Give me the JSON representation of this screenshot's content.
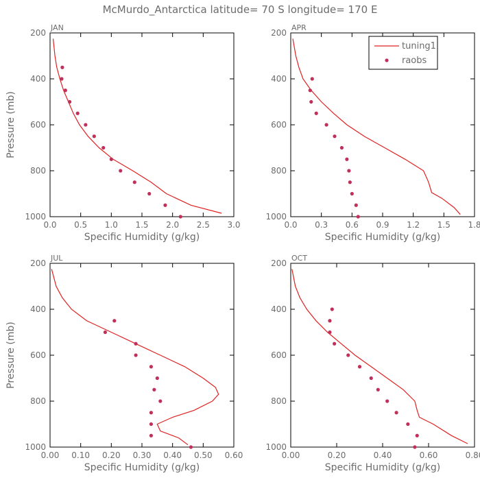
{
  "suptitle": "McMurdo_Antarctica  latitude= 70 S longitude= 170 E",
  "colors": {
    "model": "#e02020",
    "obs": "#c0305a",
    "axis": "#000000",
    "text": "#6b6b6b"
  },
  "legend": {
    "model_label": "tuning1",
    "obs_label": "raobs",
    "panel": "APR"
  },
  "chart_data": [
    {
      "type": "line+scatter",
      "title": "JAN",
      "xlabel": "Specific Humidity (g/kg)",
      "ylabel": "Pressure (mb)",
      "xlim": [
        0,
        3.0
      ],
      "ylim": [
        200,
        1000
      ],
      "y_inverted": true,
      "xticks": [
        0,
        0.5,
        1.0,
        1.5,
        2.0,
        2.5,
        3.0
      ],
      "xticklabels": [
        "0.0",
        "0.5",
        "1.0",
        "1.5",
        "2.0",
        "2.5",
        "3.0"
      ],
      "yticks": [
        200,
        400,
        600,
        800,
        1000
      ],
      "yticklabels": [
        "200",
        "400",
        "600",
        "800",
        "1000"
      ],
      "series": [
        {
          "name": "tuning1",
          "kind": "line",
          "points": [
            [
              0.05,
              225
            ],
            [
              0.06,
              250
            ],
            [
              0.08,
              300
            ],
            [
              0.11,
              350
            ],
            [
              0.16,
              400
            ],
            [
              0.22,
              450
            ],
            [
              0.3,
              500
            ],
            [
              0.38,
              550
            ],
            [
              0.48,
              600
            ],
            [
              0.62,
              650
            ],
            [
              0.8,
              700
            ],
            [
              1.03,
              750
            ],
            [
              1.35,
              800
            ],
            [
              1.65,
              850
            ],
            [
              1.9,
              900
            ],
            [
              2.3,
              950
            ],
            [
              2.8,
              985
            ]
          ]
        },
        {
          "name": "raobs",
          "kind": "scatter",
          "points": [
            [
              0.2,
              350
            ],
            [
              0.19,
              400
            ],
            [
              0.25,
              450
            ],
            [
              0.32,
              500
            ],
            [
              0.45,
              550
            ],
            [
              0.58,
              600
            ],
            [
              0.72,
              650
            ],
            [
              0.87,
              700
            ],
            [
              1.0,
              750
            ],
            [
              1.15,
              800
            ],
            [
              1.38,
              850
            ],
            [
              1.62,
              900
            ],
            [
              1.88,
              950
            ],
            [
              2.13,
              1000
            ]
          ]
        }
      ]
    },
    {
      "type": "line+scatter",
      "title": "APR",
      "xlabel": "Specific Humidity (g/kg)",
      "ylabel": "",
      "xlim": [
        0,
        1.8
      ],
      "ylim": [
        200,
        1000
      ],
      "y_inverted": true,
      "xticks": [
        0,
        0.3,
        0.6,
        0.9,
        1.2,
        1.5,
        1.8
      ],
      "xticklabels": [
        "0.0",
        "0.3",
        "0.6",
        "0.9",
        "1.2",
        "1.5",
        "1.8"
      ],
      "yticks": [
        200,
        400,
        600,
        800,
        1000
      ],
      "yticklabels": [
        "200",
        "400",
        "600",
        "800",
        "1000"
      ],
      "series": [
        {
          "name": "tuning1",
          "kind": "line",
          "points": [
            [
              0.02,
              225
            ],
            [
              0.03,
              250
            ],
            [
              0.05,
              300
            ],
            [
              0.08,
              350
            ],
            [
              0.12,
              400
            ],
            [
              0.2,
              450
            ],
            [
              0.3,
              500
            ],
            [
              0.42,
              550
            ],
            [
              0.55,
              600
            ],
            [
              0.72,
              650
            ],
            [
              0.92,
              700
            ],
            [
              1.12,
              750
            ],
            [
              1.3,
              800
            ],
            [
              1.35,
              850
            ],
            [
              1.38,
              895
            ],
            [
              1.48,
              920
            ],
            [
              1.6,
              960
            ],
            [
              1.66,
              990
            ]
          ]
        },
        {
          "name": "raobs",
          "kind": "scatter",
          "points": [
            [
              0.21,
              400
            ],
            [
              0.19,
              450
            ],
            [
              0.2,
              500
            ],
            [
              0.25,
              550
            ],
            [
              0.35,
              600
            ],
            [
              0.43,
              650
            ],
            [
              0.5,
              700
            ],
            [
              0.55,
              750
            ],
            [
              0.57,
              800
            ],
            [
              0.58,
              850
            ],
            [
              0.6,
              900
            ],
            [
              0.64,
              950
            ],
            [
              0.66,
              1000
            ]
          ]
        }
      ]
    },
    {
      "type": "line+scatter",
      "title": "JUL",
      "xlabel": "Specific Humidity (g/kg)",
      "ylabel": "Pressure (mb)",
      "xlim": [
        0,
        0.6
      ],
      "ylim": [
        200,
        1000
      ],
      "y_inverted": true,
      "xticks": [
        0,
        0.1,
        0.2,
        0.3,
        0.4,
        0.5,
        0.6
      ],
      "xticklabels": [
        "0.00",
        "0.10",
        "0.20",
        "0.30",
        "0.40",
        "0.50",
        "0.60"
      ],
      "yticks": [
        200,
        400,
        600,
        800,
        1000
      ],
      "yticklabels": [
        "200",
        "400",
        "600",
        "800",
        "1000"
      ],
      "series": [
        {
          "name": "tuning1",
          "kind": "line",
          "points": [
            [
              0.005,
              225
            ],
            [
              0.01,
              250
            ],
            [
              0.02,
              300
            ],
            [
              0.04,
              350
            ],
            [
              0.07,
              400
            ],
            [
              0.12,
              450
            ],
            [
              0.2,
              500
            ],
            [
              0.28,
              550
            ],
            [
              0.36,
              600
            ],
            [
              0.44,
              650
            ],
            [
              0.5,
              700
            ],
            [
              0.54,
              740
            ],
            [
              0.55,
              770
            ],
            [
              0.53,
              800
            ],
            [
              0.47,
              840
            ],
            [
              0.4,
              870
            ],
            [
              0.35,
              900
            ],
            [
              0.36,
              930
            ],
            [
              0.42,
              960
            ],
            [
              0.45,
              990
            ]
          ]
        },
        {
          "name": "raobs",
          "kind": "scatter",
          "points": [
            [
              0.21,
              450
            ],
            [
              0.18,
              500
            ],
            [
              0.28,
              550
            ],
            [
              0.28,
              600
            ],
            [
              0.33,
              650
            ],
            [
              0.35,
              700
            ],
            [
              0.34,
              750
            ],
            [
              0.36,
              800
            ],
            [
              0.33,
              850
            ],
            [
              0.33,
              900
            ],
            [
              0.33,
              950
            ],
            [
              0.46,
              1000
            ]
          ]
        }
      ]
    },
    {
      "type": "line+scatter",
      "title": "OCT",
      "xlabel": "Specific Humidity (g/kg)",
      "ylabel": "",
      "xlim": [
        0,
        0.8
      ],
      "ylim": [
        200,
        1000
      ],
      "y_inverted": true,
      "xticks": [
        0,
        0.2,
        0.4,
        0.6,
        0.8
      ],
      "xticklabels": [
        "0.00",
        "0.20",
        "0.40",
        "0.60",
        "0.80"
      ],
      "yticks": [
        200,
        400,
        600,
        800,
        1000
      ],
      "yticklabels": [
        "200",
        "400",
        "600",
        "800",
        "1000"
      ],
      "series": [
        {
          "name": "tuning1",
          "kind": "line",
          "points": [
            [
              0.005,
              225
            ],
            [
              0.01,
              250
            ],
            [
              0.02,
              300
            ],
            [
              0.04,
              350
            ],
            [
              0.07,
              400
            ],
            [
              0.11,
              450
            ],
            [
              0.16,
              500
            ],
            [
              0.22,
              550
            ],
            [
              0.28,
              600
            ],
            [
              0.35,
              650
            ],
            [
              0.42,
              700
            ],
            [
              0.49,
              750
            ],
            [
              0.54,
              800
            ],
            [
              0.55,
              840
            ],
            [
              0.56,
              870
            ],
            [
              0.62,
              900
            ],
            [
              0.7,
              950
            ],
            [
              0.77,
              985
            ]
          ]
        },
        {
          "name": "raobs",
          "kind": "scatter",
          "points": [
            [
              0.18,
              400
            ],
            [
              0.17,
              450
            ],
            [
              0.17,
              500
            ],
            [
              0.19,
              550
            ],
            [
              0.25,
              600
            ],
            [
              0.3,
              650
            ],
            [
              0.35,
              700
            ],
            [
              0.38,
              750
            ],
            [
              0.42,
              800
            ],
            [
              0.46,
              850
            ],
            [
              0.51,
              900
            ],
            [
              0.55,
              950
            ],
            [
              0.54,
              1000
            ]
          ]
        }
      ]
    }
  ]
}
